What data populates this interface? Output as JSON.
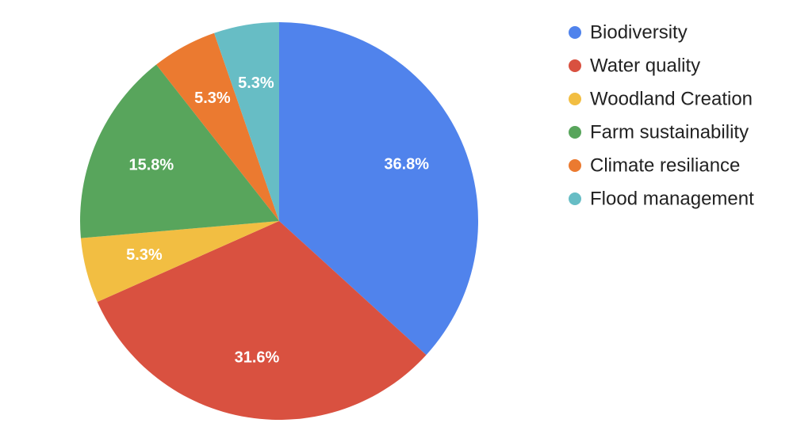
{
  "chart_data": {
    "type": "pie",
    "categories": [
      "Biodiversity",
      "Water quality",
      "Woodland Creation",
      "Farm sustainability",
      "Climate resiliance",
      "Flood management"
    ],
    "values": [
      36.8,
      31.6,
      5.3,
      15.8,
      5.3,
      5.3
    ],
    "value_labels": [
      "36.8%",
      "31.6%",
      "5.3%",
      "15.8%",
      "5.3%",
      "5.3%"
    ],
    "colors": [
      "#5083ec",
      "#d95140",
      "#f2be42",
      "#58a55c",
      "#eb7a30",
      "#67bdc5"
    ]
  }
}
